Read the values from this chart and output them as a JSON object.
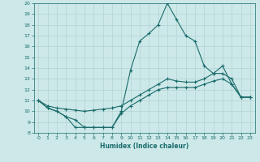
{
  "xlabel": "Humidex (Indice chaleur)",
  "bg_color": "#cce8e8",
  "line_color": "#1a6b6b",
  "grid_color": "#a8c8c8",
  "xlim": [
    -0.5,
    23.5
  ],
  "ylim": [
    8,
    20
  ],
  "xticks": [
    0,
    1,
    2,
    3,
    4,
    5,
    6,
    7,
    8,
    9,
    10,
    11,
    12,
    13,
    14,
    15,
    16,
    17,
    18,
    19,
    20,
    21,
    22,
    23
  ],
  "yticks": [
    8,
    9,
    10,
    11,
    12,
    13,
    14,
    15,
    16,
    17,
    18,
    19,
    20
  ],
  "line1_x": [
    0,
    1,
    2,
    3,
    4,
    5,
    6,
    7,
    8,
    9,
    10,
    11,
    12,
    13,
    14,
    15,
    16,
    17,
    18,
    19,
    20,
    21,
    22,
    23
  ],
  "line1_y": [
    11.0,
    10.3,
    10.0,
    9.5,
    8.5,
    8.5,
    8.5,
    8.5,
    8.5,
    10.0,
    13.8,
    16.5,
    17.2,
    18.0,
    20.0,
    18.5,
    17.0,
    16.5,
    14.2,
    13.5,
    14.2,
    12.5,
    11.3,
    11.3
  ],
  "line2_x": [
    0,
    1,
    2,
    3,
    4,
    5,
    6,
    7,
    8,
    9,
    10,
    11,
    12,
    13,
    14,
    15,
    16,
    17,
    18,
    19,
    20,
    21,
    22,
    23
  ],
  "line2_y": [
    11.0,
    10.5,
    10.3,
    10.2,
    10.1,
    10.0,
    10.1,
    10.2,
    10.3,
    10.5,
    11.0,
    11.5,
    12.0,
    12.5,
    13.0,
    12.8,
    12.7,
    12.7,
    13.0,
    13.5,
    13.5,
    13.0,
    11.3,
    11.3
  ],
  "line3_x": [
    0,
    1,
    2,
    3,
    4,
    5,
    6,
    7,
    8,
    9,
    10,
    11,
    12,
    13,
    14,
    15,
    16,
    17,
    18,
    19,
    20,
    21,
    22,
    23
  ],
  "line3_y": [
    11.0,
    10.3,
    10.0,
    9.5,
    9.2,
    8.5,
    8.5,
    8.5,
    8.5,
    9.8,
    10.5,
    11.0,
    11.5,
    12.0,
    12.2,
    12.2,
    12.2,
    12.2,
    12.5,
    12.8,
    13.0,
    12.5,
    11.3,
    11.3
  ]
}
